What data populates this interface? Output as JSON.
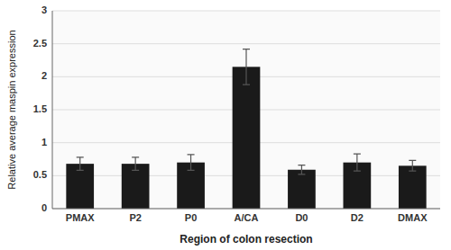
{
  "chart_data": {
    "type": "bar",
    "categories": [
      "PMAX",
      "P2",
      "P0",
      "A/CA",
      "D0",
      "D2",
      "DMAX"
    ],
    "values": [
      0.68,
      0.68,
      0.7,
      2.15,
      0.59,
      0.7,
      0.65
    ],
    "errors": [
      0.1,
      0.1,
      0.12,
      0.27,
      0.07,
      0.13,
      0.08
    ],
    "color": "#1a1a1a",
    "ylim": [
      0,
      3.0
    ],
    "yticks": [
      0,
      0.5,
      1.0,
      1.5,
      2.0,
      2.5,
      3.0
    ],
    "y_label": "Relative average maspin expression",
    "x_label": "Region of colon resection",
    "grid": true
  }
}
